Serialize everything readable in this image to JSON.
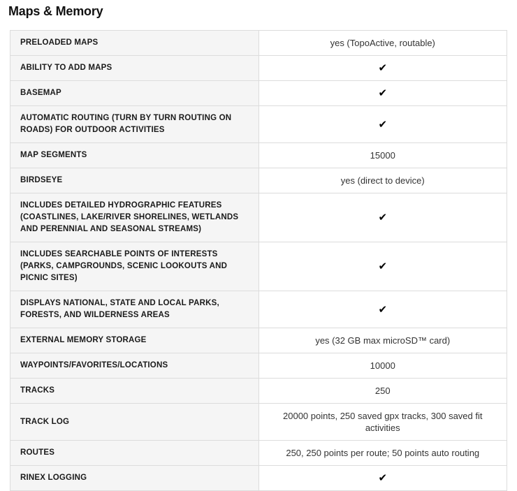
{
  "page": {
    "title": "Maps & Memory"
  },
  "icons": {
    "check_glyph": "✔"
  },
  "colors": {
    "label_background": "#f5f5f5",
    "value_background": "#ffffff",
    "border": "#dcdcdc",
    "label_text": "#1a1a1a",
    "value_text": "#333333",
    "check": "#000000"
  },
  "table": {
    "rows": [
      {
        "label": "PRELOADED MAPS",
        "type": "text",
        "value": "yes (TopoActive, routable)"
      },
      {
        "label": "ABILITY TO ADD MAPS",
        "type": "check",
        "value": "yes"
      },
      {
        "label": "BASEMAP",
        "type": "check",
        "value": "yes"
      },
      {
        "label": "AUTOMATIC ROUTING (TURN BY TURN ROUTING ON ROADS) FOR OUTDOOR ACTIVITIES",
        "type": "check",
        "value": "yes"
      },
      {
        "label": "MAP SEGMENTS",
        "type": "text",
        "value": "15000"
      },
      {
        "label": "BIRDSEYE",
        "type": "text",
        "value": "yes (direct to device)"
      },
      {
        "label": "INCLUDES DETAILED HYDROGRAPHIC FEATURES (COASTLINES, LAKE/RIVER SHORELINES, WETLANDS AND PERENNIAL AND SEASONAL STREAMS)",
        "type": "check",
        "value": "yes"
      },
      {
        "label": "INCLUDES SEARCHABLE POINTS OF INTERESTS (PARKS, CAMPGROUNDS, SCENIC LOOKOUTS AND PICNIC SITES)",
        "type": "check",
        "value": "yes"
      },
      {
        "label": "DISPLAYS NATIONAL, STATE AND LOCAL PARKS, FORESTS, AND WILDERNESS AREAS",
        "type": "check",
        "value": "yes"
      },
      {
        "label": "EXTERNAL MEMORY STORAGE",
        "type": "text",
        "value": "yes (32 GB max microSD™ card)"
      },
      {
        "label": "WAYPOINTS/FAVORITES/LOCATIONS",
        "type": "text",
        "value": "10000"
      },
      {
        "label": "TRACKS",
        "type": "text",
        "value": "250"
      },
      {
        "label": "TRACK LOG",
        "type": "text",
        "value": "20000 points, 250 saved gpx tracks, 300 saved fit activities"
      },
      {
        "label": "ROUTES",
        "type": "text",
        "value": "250, 250 points per route; 50 points auto routing"
      },
      {
        "label": "RINEX LOGGING",
        "type": "check",
        "value": "yes"
      }
    ]
  }
}
